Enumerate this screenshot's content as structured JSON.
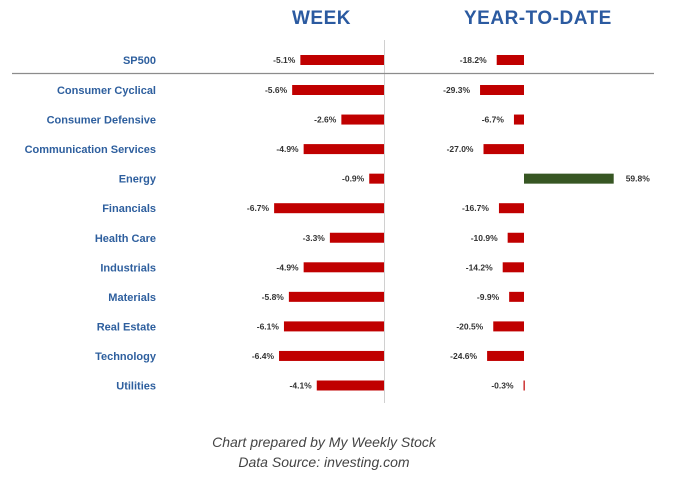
{
  "chart_data": {
    "type": "bar",
    "orientation": "horizontal",
    "panels": [
      "WEEK",
      "YEAR-TO-DATE"
    ],
    "categories": [
      "SP500",
      "Consumer Cyclical",
      "Consumer Defensive",
      "Communication Services",
      "Energy",
      "Financials",
      "Health Care",
      "Industrials",
      "Materials",
      "Real Estate",
      "Technology",
      "Utilities"
    ],
    "series": [
      {
        "name": "WEEK",
        "values": [
          -5.1,
          -5.6,
          -2.6,
          -4.9,
          -0.9,
          -6.7,
          -3.3,
          -4.9,
          -5.8,
          -6.1,
          -6.4,
          -4.1
        ],
        "labels": [
          "-5.1%",
          "-5.6%",
          "-2.6%",
          "-4.9%",
          "-0.9%",
          "-6.7%",
          "-3.3%",
          "-4.9%",
          "-5.8%",
          "-6.1%",
          "-6.4%",
          "-4.1%"
        ]
      },
      {
        "name": "YEAR-TO-DATE",
        "values": [
          -18.2,
          -29.3,
          -6.7,
          -27.0,
          59.8,
          -16.7,
          -10.9,
          -14.2,
          -9.9,
          -20.5,
          -24.6,
          -0.3
        ],
        "labels": [
          "-18.2%",
          "-29.3%",
          "-6.7%",
          "-27.0%",
          "59.8%",
          "-16.7%",
          "-10.9%",
          "-14.2%",
          "-9.9%",
          "-20.5%",
          "-24.6%",
          "-0.3%"
        ]
      }
    ],
    "colors": {
      "negative": "#c00000",
      "positive": "#375623",
      "category_text": "#2e5f9e",
      "header_text": "#2b5aa0"
    },
    "grid": false,
    "legend": "none"
  },
  "headers": {
    "week": "WEEK",
    "ytd": "YEAR-TO-DATE"
  },
  "footer": {
    "line1": "Chart prepared by My Weekly Stock",
    "line2": "Data Source: investing.com"
  }
}
